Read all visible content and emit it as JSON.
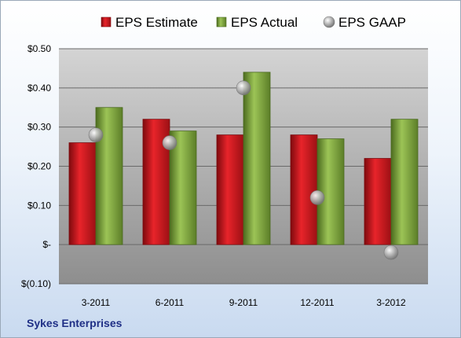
{
  "chart_data": {
    "type": "bar",
    "title": "",
    "xlabel": "",
    "ylabel": "",
    "categories": [
      "3-2011",
      "6-2011",
      "9-2011",
      "12-2011",
      "3-2012"
    ],
    "series": [
      {
        "name": "EPS Estimate",
        "kind": "bar",
        "color": "#c8161c",
        "values": [
          0.26,
          0.32,
          0.28,
          0.28,
          0.22
        ]
      },
      {
        "name": "EPS Actual",
        "kind": "bar",
        "color": "#7aa23a",
        "values": [
          0.35,
          0.29,
          0.44,
          0.27,
          0.32
        ]
      },
      {
        "name": "EPS GAAP",
        "kind": "marker",
        "color": "#9a9a9a",
        "values": [
          0.28,
          0.26,
          0.4,
          0.12,
          -0.02
        ]
      }
    ],
    "ylim": [
      -0.1,
      0.5
    ],
    "yticks": [
      -0.1,
      0.0,
      0.1,
      0.2,
      0.3,
      0.4,
      0.5
    ],
    "ytick_labels": [
      "$(0.10)",
      "$-",
      "$0.10",
      "$0.20",
      "$0.30",
      "$0.40",
      "$0.50"
    ],
    "grid": true,
    "legend_position": "top"
  },
  "footer": {
    "company": "Sykes Enterprises"
  }
}
